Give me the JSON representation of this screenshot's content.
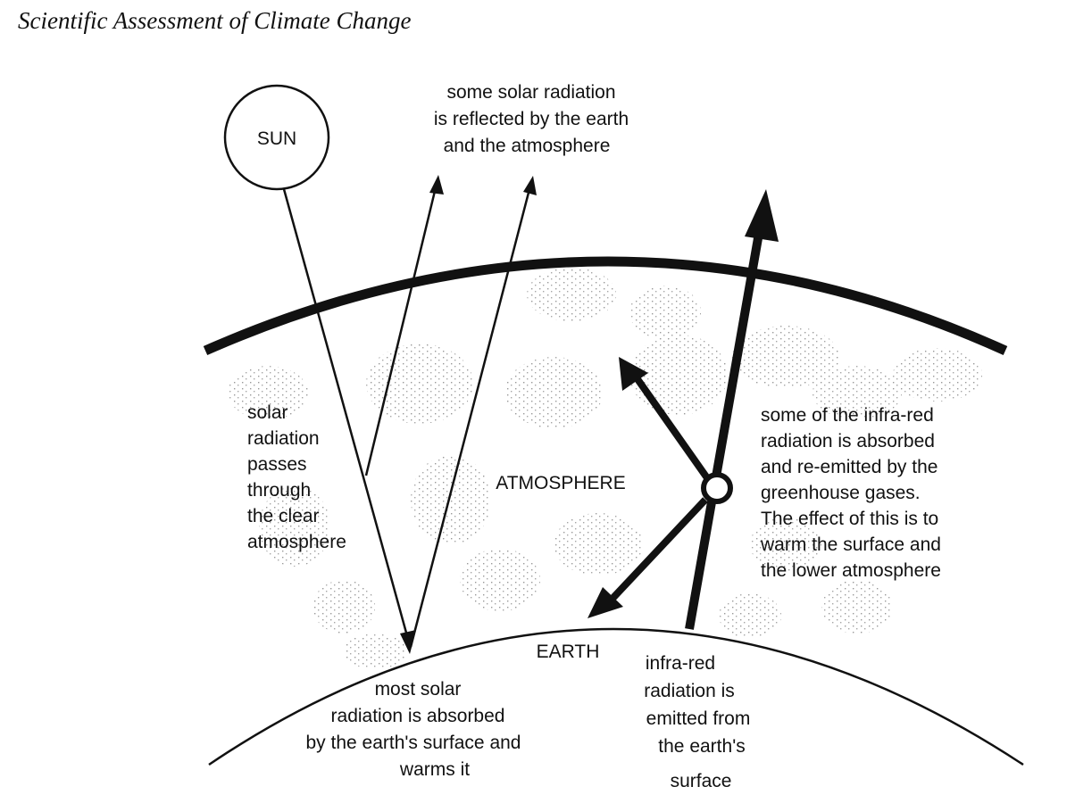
{
  "header": {
    "title": "Scientific Assessment of Climate Change"
  },
  "diagram": {
    "sun_label": "SUN",
    "reflected_label": [
      "some solar radiation",
      "is reflected by the earth",
      "and the atmosphere"
    ],
    "passes_label": [
      "solar",
      "radiation",
      "passes",
      "through",
      "the clear",
      "atmosphere"
    ],
    "atmosphere_label": "ATMOSPHERE",
    "earth_label": "EARTH",
    "greenhouse_label": [
      "some of the infra-red",
      "radiation is absorbed",
      "and re-emitted by the",
      "greenhouse gases.",
      "The effect of this is to",
      "warm the surface and",
      "the lower atmosphere"
    ],
    "absorbed_label": [
      "most solar",
      "radiation is absorbed",
      "by the earth's surface and",
      "warms it"
    ],
    "emitted_label": [
      "infra-red",
      "radiation is",
      "emitted from",
      "the earth's",
      "surface"
    ]
  }
}
